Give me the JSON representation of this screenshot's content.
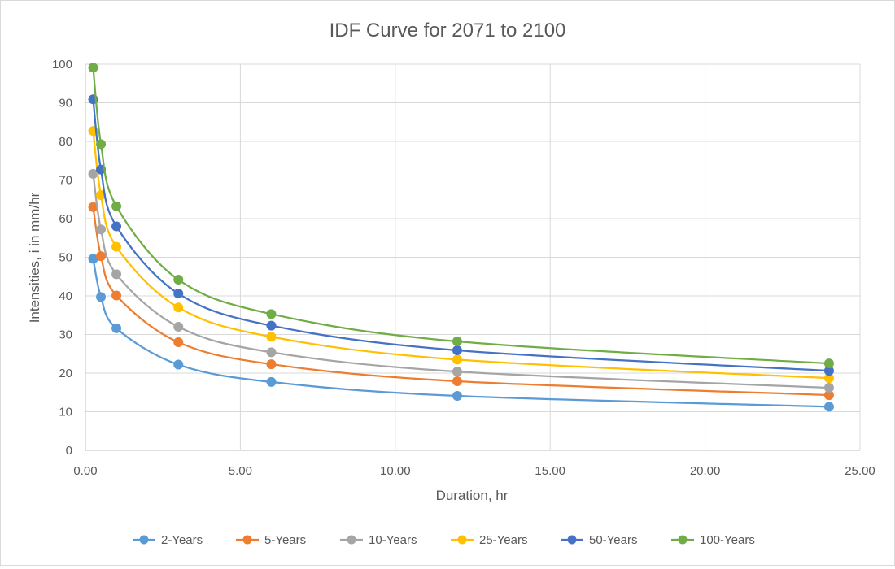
{
  "chart_data": {
    "type": "scatter",
    "title": "IDF Curve for 2071 to 2100",
    "xlabel": "Duration, hr",
    "ylabel": "Intensities, i in mm/hr",
    "xlim": [
      0,
      25
    ],
    "ylim": [
      0,
      100
    ],
    "x_ticks": [
      "0.00",
      "5.00",
      "10.00",
      "15.00",
      "20.00",
      "25.00"
    ],
    "y_ticks": [
      "0",
      "10",
      "20",
      "30",
      "40",
      "50",
      "60",
      "70",
      "80",
      "90",
      "100"
    ],
    "grid": true,
    "smooth_lines": true,
    "markers": true,
    "legend_position": "bottom",
    "x": [
      0.25,
      0.5,
      1,
      3,
      6,
      12,
      24
    ],
    "series": [
      {
        "name": "2-Years",
        "color": "#5b9bd5",
        "values": [
          49.6,
          39.7,
          31.6,
          22.2,
          17.7,
          14.1,
          11.3
        ]
      },
      {
        "name": "5-Years",
        "color": "#ed7d31",
        "values": [
          63.0,
          50.3,
          40.1,
          28.0,
          22.3,
          17.9,
          14.3
        ]
      },
      {
        "name": "10-Years",
        "color": "#a5a5a5",
        "values": [
          71.6,
          57.2,
          45.6,
          32.0,
          25.4,
          20.4,
          16.2
        ]
      },
      {
        "name": "25-Years",
        "color": "#ffc000",
        "values": [
          82.7,
          66.1,
          52.7,
          37.0,
          29.4,
          23.5,
          18.7
        ]
      },
      {
        "name": "50-Years",
        "color": "#4472c4",
        "values": [
          90.9,
          72.7,
          58.0,
          40.6,
          32.3,
          25.9,
          20.6
        ]
      },
      {
        "name": "100-Years",
        "color": "#70ad47",
        "values": [
          99.1,
          79.3,
          63.2,
          44.2,
          35.3,
          28.2,
          22.5
        ]
      }
    ]
  }
}
